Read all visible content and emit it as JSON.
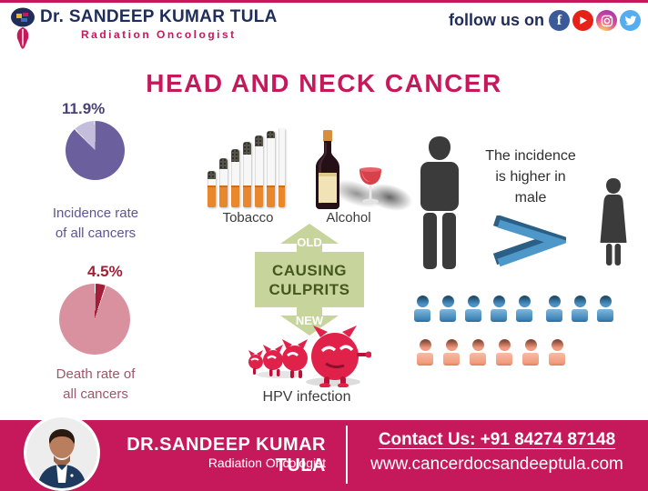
{
  "header": {
    "logo": {
      "title": "Dr. SANDEEP KUMAR TULA",
      "subtitle": "Radiation Oncologist"
    },
    "follow": {
      "label": "follow us on",
      "fb_glyph": "f",
      "icons": [
        "facebook",
        "youtube",
        "instagram",
        "twitter"
      ]
    }
  },
  "title": "HEAD AND NECK CANCER",
  "stats": {
    "incidence": {
      "value": "11.9%",
      "percent": 11.9,
      "label_line1": "Incidence rate",
      "label_line2": "of all cancers"
    },
    "death": {
      "value": "4.5%",
      "percent": 4.5,
      "label_line1": "Death rate of",
      "label_line2": "all cancers"
    }
  },
  "culprits": {
    "tobacco_label": "Tobacco",
    "alcohol_label": "Alcohol",
    "old_label": "OLD",
    "new_label": "NEW",
    "box_line1": "CAUSING",
    "box_line2": "CULPRITS",
    "hpv_label": "HPV infection"
  },
  "gender": {
    "note_line1": "The incidence",
    "note_line2": "is higher in",
    "note_line3": "male",
    "male_count": 8,
    "female_count": 6
  },
  "footer": {
    "name": "DR.SANDEEP KUMAR TULA",
    "title": "Radiation Oncologist",
    "contact": "Contact Us: +91 84274 87148",
    "website": "www.cancerdocsandeeptula.com"
  },
  "chart_data": [
    {
      "type": "pie",
      "title": "Incidence rate of all cancers",
      "labels": [
        "highlighted share",
        "remainder"
      ],
      "values": [
        11.9,
        88.1
      ],
      "colors": [
        "#C4BDDC",
        "#6C5F9E"
      ],
      "data_label": "11.9%"
    },
    {
      "type": "pie",
      "title": "Death rate of all cancers",
      "labels": [
        "highlighted share",
        "remainder"
      ],
      "values": [
        4.5,
        95.5
      ],
      "colors": [
        "#A21F37",
        "#D9909F"
      ],
      "data_label": "4.5%"
    }
  ],
  "colors": {
    "accent_crimson": "#C5195C",
    "navy": "#1E2D5A",
    "pie1_main": "#6C5F9E",
    "pie1_slice": "#C4BDDC",
    "pie2_main": "#D9909F",
    "pie2_slice": "#A21F37",
    "green_box": "#C7D59C",
    "green_text": "#44581E",
    "male_blue": "#4C92C5",
    "female_salmon": "#F09B7E",
    "silhouette": "#3B3B3B",
    "chevron_blue": "#4E97C9"
  }
}
